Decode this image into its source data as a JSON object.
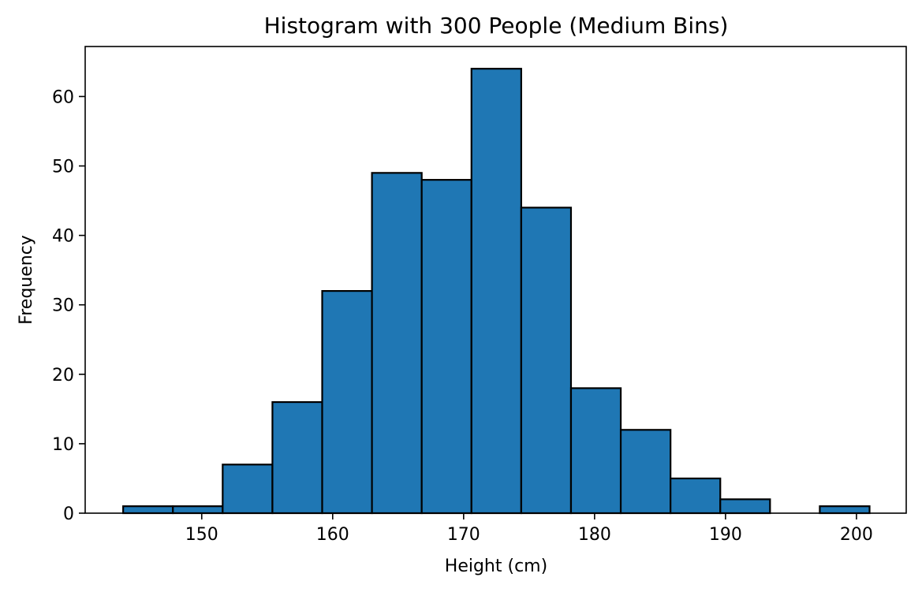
{
  "chart_data": {
    "type": "histogram",
    "title": "Histogram with 300 People (Medium Bins)",
    "xlabel": "Height (cm)",
    "ylabel": "Frequency",
    "xlim": [
      141.1,
      203.8
    ],
    "ylim": [
      0,
      67.2
    ],
    "x_ticks": [
      150,
      160,
      170,
      180,
      190,
      200
    ],
    "y_ticks": [
      0,
      10,
      20,
      30,
      40,
      50,
      60
    ],
    "bin_edges": [
      144.0,
      147.8,
      151.6,
      155.4,
      159.2,
      163.0,
      166.8,
      170.6,
      174.4,
      178.2,
      182.0,
      185.8,
      189.6,
      193.4,
      197.2,
      201.0
    ],
    "counts": [
      1,
      1,
      7,
      16,
      32,
      49,
      48,
      64,
      44,
      18,
      12,
      5,
      2,
      0,
      1
    ],
    "bar_color": "#1f77b4",
    "edge_color": "#000000",
    "grid": false
  }
}
